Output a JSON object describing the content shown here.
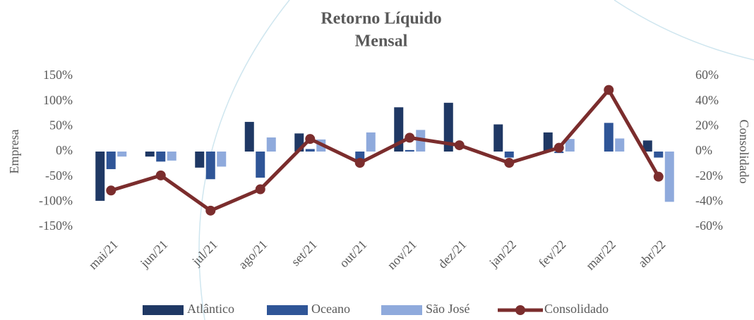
{
  "chart_data": {
    "type": "bar_line",
    "title": [
      "Retorno Líquido",
      "Mensal"
    ],
    "y_label": "Empresa",
    "y2_label": "Consolidado",
    "categories": [
      "mai/21",
      "jun/21",
      "jul/21",
      "ago/21",
      "set/21",
      "out/21",
      "nov/21",
      "dez/21",
      "jan/22",
      "fev/22",
      "mar/22",
      "abr/22"
    ],
    "series": [
      {
        "name": "Atlântico",
        "type": "bar",
        "color": "#1f3864",
        "values": [
          -98,
          -10,
          -32,
          59,
          36,
          0,
          88,
          97,
          54,
          38,
          0,
          22
        ]
      },
      {
        "name": "Oceano",
        "type": "bar",
        "color": "#2f5597",
        "values": [
          -35,
          -20,
          -55,
          -52,
          5,
          -18,
          3,
          0,
          -12,
          -3,
          57,
          -12
        ]
      },
      {
        "name": "São  José",
        "type": "bar",
        "color": "#8faadc",
        "values": [
          -10,
          -18,
          -30,
          28,
          24,
          38,
          43,
          0,
          0,
          25,
          26,
          -100
        ]
      },
      {
        "name": "Consolidado",
        "type": "line",
        "axis": "y2",
        "color": "#7b2d2d",
        "values": [
          -31,
          -19,
          -47,
          -30,
          10,
          -9,
          11,
          5,
          -9,
          3,
          49,
          -20
        ]
      }
    ],
    "ylim": [
      -150,
      150
    ],
    "yticks": [
      {
        "value": -150,
        "label": "-150%"
      },
      {
        "value": -100,
        "label": "-100%"
      },
      {
        "value": -50,
        "label": "-50%"
      },
      {
        "value": 0,
        "label": "0%"
      },
      {
        "value": 50,
        "label": "50%"
      },
      {
        "value": 100,
        "label": "100%"
      },
      {
        "value": 150,
        "label": "150%"
      }
    ],
    "y2lim": [
      -60,
      60
    ],
    "y2ticks": [
      {
        "value": -60,
        "label": "-60%"
      },
      {
        "value": -40,
        "label": "-40%"
      },
      {
        "value": -20,
        "label": "-20%"
      },
      {
        "value": 0,
        "label": "0%"
      },
      {
        "value": 20,
        "label": "20%"
      },
      {
        "value": 40,
        "label": "40%"
      },
      {
        "value": 60,
        "label": "60%"
      }
    ],
    "legend": "bottom",
    "grid": false
  }
}
